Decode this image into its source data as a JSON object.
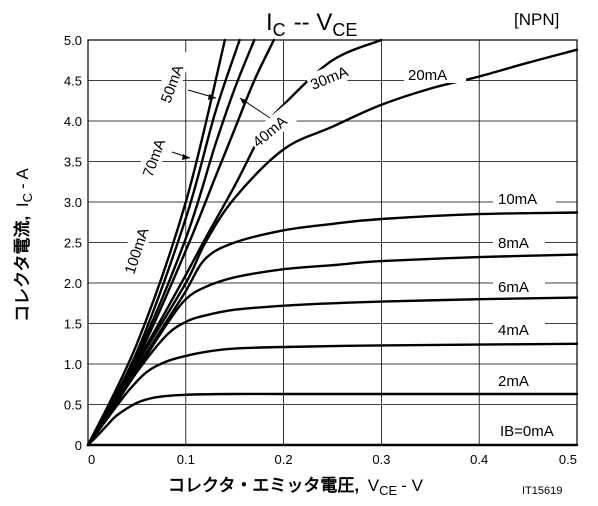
{
  "chart_data": {
    "type": "line",
    "title": "IC -- VCE",
    "title_main": "I",
    "title_sub1": "C",
    "title_sep": "-- V",
    "title_sub2": "CE",
    "tag": "[NPN]",
    "ylabel_jp": "コレクタ電流,",
    "ylabel_I": "I",
    "ylabel_sub": "C",
    "ylabel_unit": "- A",
    "xlabel_jp": "コレクタ・エミッタ電圧,",
    "xlabel_V": "V",
    "xlabel_sub": "CE",
    "xlabel_unit": "- V",
    "code": "IT15619",
    "xlim": [
      0,
      0.5
    ],
    "ylim": [
      0,
      5.0
    ],
    "x_ticks": [
      "0",
      "0.1",
      "0.2",
      "0.3",
      "0.4",
      "0.5"
    ],
    "y_ticks": [
      "0",
      "0.5",
      "1.0",
      "1.5",
      "2.0",
      "2.5",
      "3.0",
      "3.5",
      "4.0",
      "4.5",
      "5.0"
    ],
    "grid": true,
    "series": [
      {
        "name": "IB=0mA",
        "x": [
          0,
          0.5
        ],
        "y": [
          0,
          0.0
        ]
      },
      {
        "name": "2mA",
        "x": [
          0,
          0.01,
          0.02,
          0.03,
          0.05,
          0.07,
          0.1,
          0.15,
          0.2,
          0.3,
          0.4,
          0.5
        ],
        "y": [
          0,
          0.12,
          0.25,
          0.37,
          0.52,
          0.59,
          0.62,
          0.63,
          0.63,
          0.63,
          0.63,
          0.63
        ]
      },
      {
        "name": "4mA",
        "x": [
          0,
          0.02,
          0.04,
          0.06,
          0.08,
          0.1,
          0.12,
          0.15,
          0.2,
          0.3,
          0.4,
          0.5
        ],
        "y": [
          0,
          0.33,
          0.65,
          0.9,
          1.03,
          1.1,
          1.15,
          1.19,
          1.21,
          1.23,
          1.24,
          1.25
        ]
      },
      {
        "name": "6mA",
        "x": [
          0,
          0.02,
          0.05,
          0.08,
          0.1,
          0.12,
          0.15,
          0.2,
          0.25,
          0.3,
          0.4,
          0.5
        ],
        "y": [
          0,
          0.35,
          0.9,
          1.35,
          1.52,
          1.6,
          1.67,
          1.72,
          1.75,
          1.77,
          1.8,
          1.82
        ]
      },
      {
        "name": "8mA",
        "x": [
          0,
          0.02,
          0.05,
          0.08,
          0.1,
          0.12,
          0.15,
          0.2,
          0.25,
          0.3,
          0.4,
          0.5
        ],
        "y": [
          0,
          0.36,
          0.92,
          1.48,
          1.8,
          1.95,
          2.07,
          2.17,
          2.22,
          2.27,
          2.32,
          2.35
        ]
      },
      {
        "name": "10mA",
        "x": [
          0,
          0.05,
          0.08,
          0.1,
          0.12,
          0.15,
          0.2,
          0.25,
          0.3,
          0.4,
          0.5
        ],
        "y": [
          0,
          0.95,
          1.52,
          1.9,
          2.3,
          2.5,
          2.65,
          2.73,
          2.79,
          2.85,
          2.87
        ]
      },
      {
        "name": "20mA",
        "x": [
          0,
          0.05,
          0.1,
          0.12,
          0.15,
          0.2,
          0.25,
          0.3,
          0.35,
          0.4,
          0.45,
          0.5
        ],
        "y": [
          0,
          1.0,
          2.0,
          2.5,
          3.05,
          3.65,
          3.93,
          4.2,
          4.4,
          4.55,
          4.72,
          4.88
        ]
      },
      {
        "name": "30mA",
        "x": [
          0,
          0.05,
          0.1,
          0.12,
          0.15,
          0.18,
          0.2,
          0.25,
          0.3
        ],
        "y": [
          0,
          1.02,
          2.1,
          2.55,
          3.2,
          3.9,
          4.2,
          4.75,
          5.0
        ]
      },
      {
        "name": "40mA",
        "x": [
          0,
          0.05,
          0.1,
          0.13,
          0.15,
          0.17,
          0.19
        ],
        "y": [
          0,
          1.05,
          2.4,
          3.3,
          3.9,
          4.5,
          5.0
        ]
      },
      {
        "name": "50mA",
        "x": [
          0,
          0.05,
          0.1,
          0.13,
          0.15,
          0.17
        ],
        "y": [
          0,
          1.1,
          2.55,
          3.7,
          4.4,
          5.0
        ]
      },
      {
        "name": "70mA",
        "x": [
          0,
          0.05,
          0.1,
          0.13,
          0.155
        ],
        "y": [
          0,
          1.15,
          2.8,
          4.1,
          5.0
        ]
      },
      {
        "name": "100mA",
        "x": [
          0,
          0.05,
          0.1,
          0.14
        ],
        "y": [
          0,
          1.25,
          3.0,
          5.0
        ]
      }
    ]
  }
}
